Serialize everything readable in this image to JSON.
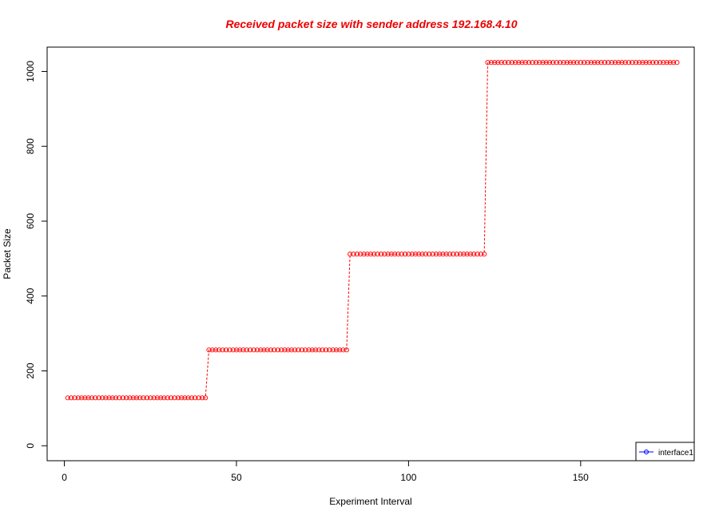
{
  "chart_data": {
    "type": "line",
    "title": "Received packet size with sender address 192.168.4.10",
    "xlabel": "Experiment Interval",
    "ylabel": "Packet Size",
    "xlim": [
      -5,
      183
    ],
    "ylim": [
      -40,
      1065
    ],
    "x_ticks": [
      0,
      50,
      100,
      150
    ],
    "y_ticks": [
      0,
      200,
      400,
      600,
      800,
      1000
    ],
    "grid": false,
    "legend_position": "bottom-right",
    "series": [
      {
        "name": "interface1",
        "segments": [
          {
            "x_start": 1,
            "x_end": 41,
            "value": 128
          },
          {
            "x_start": 42,
            "x_end": 82,
            "value": 256
          },
          {
            "x_start": 83,
            "x_end": 122,
            "value": 512
          },
          {
            "x_start": 123,
            "x_end": 178,
            "value": 1024
          }
        ]
      }
    ],
    "colors": {
      "title": "#ee0000",
      "series_line": "#ff0000",
      "legend_line": "#0000ff",
      "axis": "#000000"
    }
  }
}
